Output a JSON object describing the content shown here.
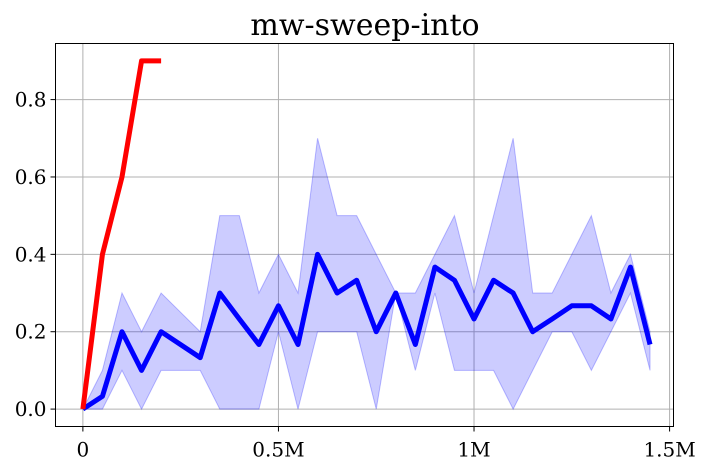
{
  "chart_data": {
    "type": "line",
    "title": "mw-sweep-into",
    "xlabel": "",
    "ylabel": "",
    "xlim": [
      -70000,
      1510000
    ],
    "ylim": [
      -0.045,
      0.945
    ],
    "xticks": [
      0,
      500000,
      1000000,
      1500000
    ],
    "xtick_labels": [
      "0",
      "0.5M",
      "1M",
      "1.5M"
    ],
    "yticks": [
      0.0,
      0.2,
      0.4,
      0.6,
      0.8
    ],
    "ytick_labels": [
      "0.0",
      "0.2",
      "0.4",
      "0.6",
      "0.8"
    ],
    "grid": true,
    "legend": "none",
    "series": [
      {
        "color": "#0000ff",
        "band_color": "#0000ff",
        "band_opacity": 0.2,
        "x": [
          0,
          50000,
          100000,
          150000,
          200000,
          300000,
          350000,
          400000,
          450000,
          500000,
          550000,
          600000,
          650000,
          700000,
          750000,
          800000,
          850000,
          900000,
          950000,
          1000000,
          1050000,
          1100000,
          1150000,
          1200000,
          1250000,
          1300000,
          1350000,
          1400000,
          1450000
        ],
        "y": [
          0.0,
          0.033,
          0.2,
          0.1,
          0.2,
          0.133,
          0.3,
          0.233,
          0.167,
          0.267,
          0.167,
          0.4,
          0.3,
          0.333,
          0.2,
          0.3,
          0.167,
          0.367,
          0.333,
          0.233,
          0.333,
          0.3,
          0.2,
          0.233,
          0.267,
          0.267,
          0.233,
          0.367,
          0.167
        ],
        "y_lower": [
          0.0,
          0.0,
          0.1,
          0.0,
          0.1,
          0.1,
          0.0,
          0.0,
          0.0,
          0.2,
          0.0,
          0.2,
          0.2,
          0.2,
          0.0,
          0.3,
          0.1,
          0.3,
          0.1,
          0.1,
          0.1,
          0.0,
          0.1,
          0.2,
          0.2,
          0.1,
          0.2,
          0.3,
          0.1
        ],
        "y_upper": [
          0.0,
          0.1,
          0.3,
          0.2,
          0.3,
          0.2,
          0.5,
          0.5,
          0.3,
          0.4,
          0.3,
          0.7,
          0.5,
          0.5,
          0.4,
          0.3,
          0.3,
          0.4,
          0.5,
          0.3,
          0.5,
          0.7,
          0.3,
          0.3,
          0.4,
          0.5,
          0.3,
          0.4,
          0.2
        ]
      },
      {
        "color": "#ff0000",
        "x": [
          0,
          50000,
          100000,
          150000,
          200000
        ],
        "y": [
          0.0,
          0.4,
          0.6,
          0.9,
          0.9
        ]
      }
    ]
  }
}
